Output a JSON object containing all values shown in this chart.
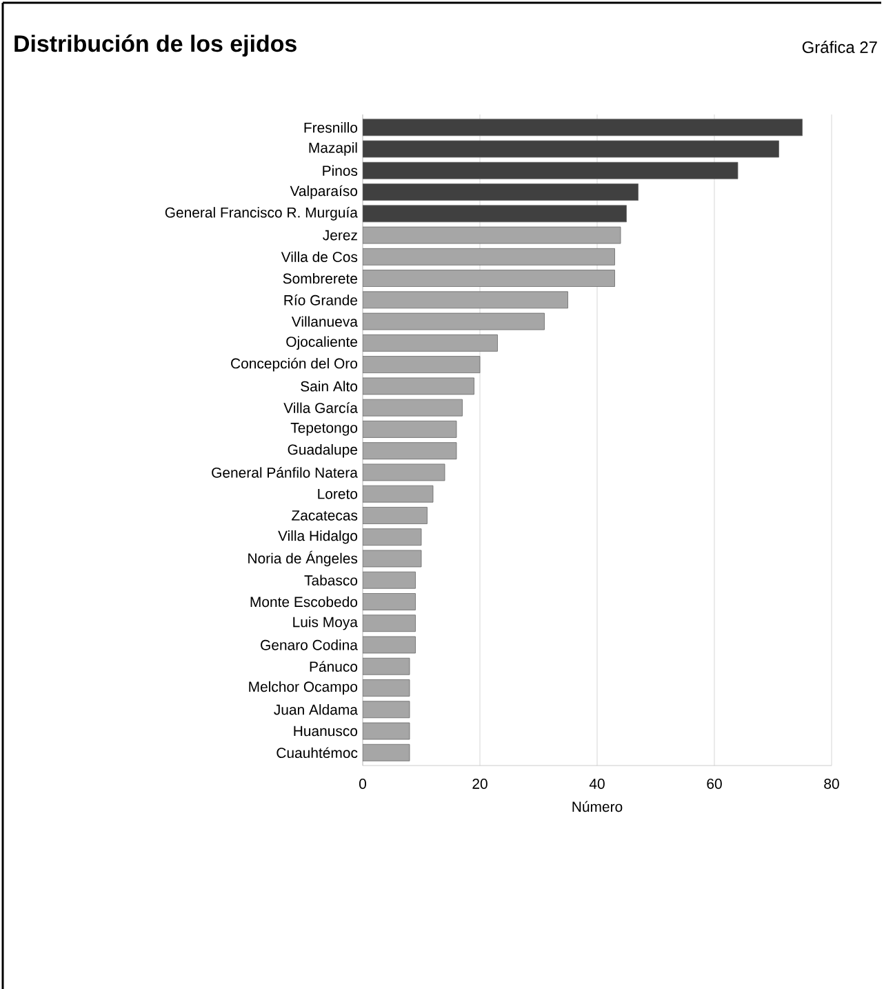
{
  "chart_data": {
    "type": "bar",
    "orientation": "horizontal",
    "title": "Distribución de los ejidos",
    "annotations": [
      "Gráfica 27"
    ],
    "xlabel": "Número",
    "categories": [
      "Fresnillo",
      "Mazapil",
      "Pinos",
      "Valparaíso",
      "General Francisco R. Murguía",
      "Jerez",
      "Villa de Cos",
      "Sombrerete",
      "Río Grande",
      "Villanueva",
      "Ojocaliente",
      "Concepción del Oro",
      "Sain Alto",
      "Villa García",
      "Tepetongo",
      "Guadalupe",
      "General Pánfilo Natera",
      "Loreto",
      "Zacatecas",
      "Villa Hidalgo",
      "Noria de Ángeles",
      "Tabasco",
      "Monte Escobedo",
      "Luis Moya",
      "Genaro Codina",
      "Pánuco",
      "Melchor Ocampo",
      "Juan Aldama",
      "Huanusco",
      "Cuauhtémoc"
    ],
    "values": [
      75,
      71,
      64,
      47,
      45,
      44,
      43,
      43,
      35,
      31,
      23,
      20,
      19,
      17,
      16,
      16,
      14,
      12,
      11,
      10,
      10,
      9,
      9,
      9,
      9,
      8,
      8,
      8,
      8,
      8
    ],
    "colors": [
      "#404040",
      "#404040",
      "#404040",
      "#404040",
      "#404040",
      "#a6a6a6",
      "#a6a6a6",
      "#a6a6a6",
      "#a6a6a6",
      "#a6a6a6",
      "#a6a6a6",
      "#a6a6a6",
      "#a6a6a6",
      "#a6a6a6",
      "#a6a6a6",
      "#a6a6a6",
      "#a6a6a6",
      "#a6a6a6",
      "#a6a6a6",
      "#a6a6a6",
      "#a6a6a6",
      "#a6a6a6",
      "#a6a6a6",
      "#a6a6a6",
      "#a6a6a6",
      "#a6a6a6",
      "#a6a6a6",
      "#a6a6a6",
      "#a6a6a6",
      "#a6a6a6"
    ],
    "xlim": [
      0,
      80
    ],
    "xticks": [
      0,
      20,
      40,
      60,
      80
    ],
    "grid": "x"
  }
}
